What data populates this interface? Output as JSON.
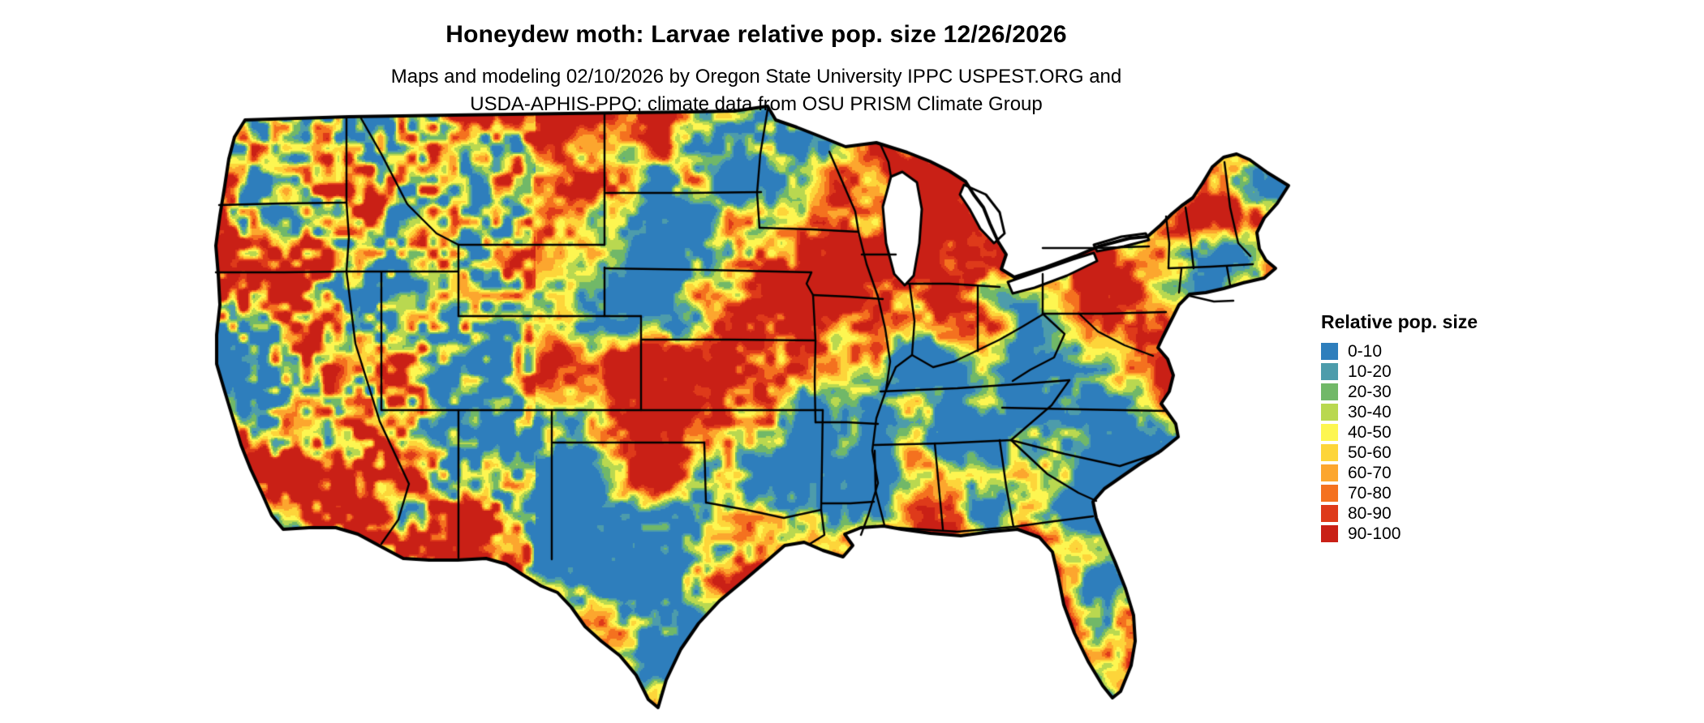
{
  "header": {
    "title": "Honeydew moth: Larvae relative pop. size 12/26/2026",
    "subtitle_line1": "Maps and modeling 02/10/2026 by Oregon State University IPPC USPEST.ORG and",
    "subtitle_line2": "USDA-APHIS-PPQ; climate data from OSU PRISM Climate Group"
  },
  "legend": {
    "title": "Relative pop. size",
    "items": [
      {
        "label": "0-10",
        "color": "#2e7ebc"
      },
      {
        "label": "10-20",
        "color": "#4d9cab"
      },
      {
        "label": "20-30",
        "color": "#71b868"
      },
      {
        "label": "30-40",
        "color": "#b9d850"
      },
      {
        "label": "40-50",
        "color": "#fdf651"
      },
      {
        "label": "50-60",
        "color": "#fdd53a"
      },
      {
        "label": "60-70",
        "color": "#fca62e"
      },
      {
        "label": "70-80",
        "color": "#f4711f"
      },
      {
        "label": "80-90",
        "color": "#de3a1a"
      },
      {
        "label": "90-100",
        "color": "#c92016"
      }
    ]
  },
  "map": {
    "region_label": "Contiguous United States choropleth",
    "border_color": "#000000",
    "water_color": "#ffffff"
  }
}
